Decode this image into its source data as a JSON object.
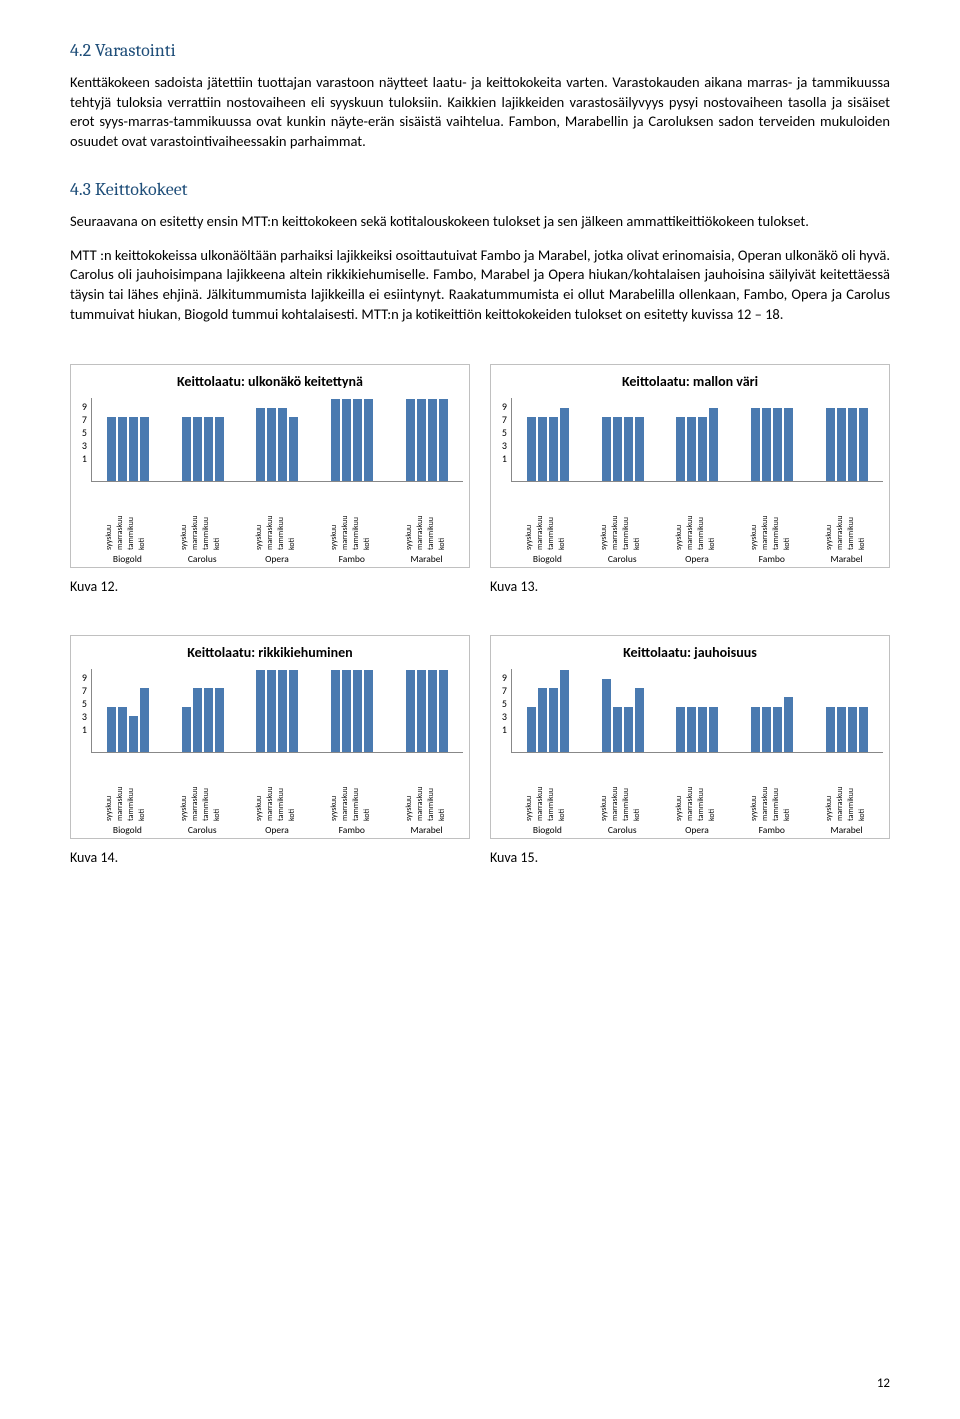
{
  "sec42": {
    "heading": "4.2 Varastointi",
    "p1": "Kenttäkokeen sadoista jätettiin tuottajan varastoon näytteet laatu- ja keittokokeita varten. Varastokauden aikana marras- ja tammikuussa tehtyjä tuloksia verrattiin nostovaiheen eli syyskuun tuloksiin. Kaikkien lajikkeiden varastosäilyvyys pysyi nostovaiheen tasolla ja sisäiset erot syys-marras-tammikuussa ovat kunkin näyte-erän sisäistä vaihtelua. Fambon, Marabellin ja Caroluksen sadon terveiden mukuloiden osuudet ovat varastointivaiheessakin parhaimmat."
  },
  "sec43": {
    "heading": "4.3 Keittokokeet",
    "p1": "Seuraavana on esitetty ensin MTT:n keittokokeen sekä kotitalouskokeen tulokset ja sen jälkeen ammattikeittiökokeen tulokset.",
    "p2": "MTT :n keittokokeissa ulkonäöltään parhaiksi lajikkeiksi osoittautuivat Fambo ja Marabel, jotka olivat erinomaisia, Operan ulkonäkö oli hyvä.  Carolus oli jauhoisimpana lajikkeena altein rikkikiehumiselle. Fambo, Marabel ja Opera hiukan/kohtalaisen jauhoisina säilyivät keitettäessä täysin tai lähes ehjinä. Jälkitummumista lajikkeilla ei esiintynyt. Raakatummumista ei ollut Marabelilla ollenkaan, Fambo, Opera ja Carolus tummuivat hiukan, Biogold tummui kohtalaisesti. MTT:n ja kotikeittiön keittokokeiden tulokset on esitetty kuvissa 12 – 18."
  },
  "months": [
    "syyskuu",
    "marraskuu",
    "tammikuu",
    "koti"
  ],
  "varieties": [
    "Biogold",
    "Carolus",
    "Opera",
    "Fambo",
    "Marabel"
  ],
  "yticks": [
    "9",
    "7",
    "5",
    "3",
    "1"
  ],
  "charts": [
    {
      "title": "Keittolaatu: ulkonäkö keitettynä",
      "data": [
        [
          7,
          7,
          7,
          7
        ],
        [
          7,
          7,
          7,
          7
        ],
        [
          8,
          8,
          8,
          7
        ],
        [
          9,
          9,
          9,
          9
        ],
        [
          9,
          9,
          9,
          9
        ]
      ]
    },
    {
      "title": "Keittolaatu: mallon väri",
      "data": [
        [
          7,
          7,
          7,
          8
        ],
        [
          7,
          7,
          7,
          7
        ],
        [
          7,
          7,
          7,
          8
        ],
        [
          8,
          8,
          8,
          8
        ],
        [
          8,
          8,
          8,
          8
        ]
      ]
    },
    {
      "title": "Keittolaatu: rikkikiehuminen",
      "data": [
        [
          5,
          5,
          4,
          7
        ],
        [
          5,
          7,
          7,
          7
        ],
        [
          9,
          9,
          9,
          9
        ],
        [
          9,
          9,
          9,
          9
        ],
        [
          9,
          9,
          9,
          9
        ]
      ]
    },
    {
      "title": "Keittolaatu: jauhoisuus",
      "data": [
        [
          5,
          7,
          7,
          9
        ],
        [
          8,
          5,
          5,
          7
        ],
        [
          5,
          5,
          5,
          5
        ],
        [
          5,
          5,
          5,
          6
        ],
        [
          5,
          5,
          5,
          5
        ]
      ]
    }
  ],
  "captions": {
    "k12": "Kuva 12.",
    "k13": "Kuva 13.",
    "k14": "Kuva 14.",
    "k15": "Kuva 15."
  },
  "scale": {
    "ymax": 9,
    "barMaxPx": 82
  },
  "pageNum": "12"
}
